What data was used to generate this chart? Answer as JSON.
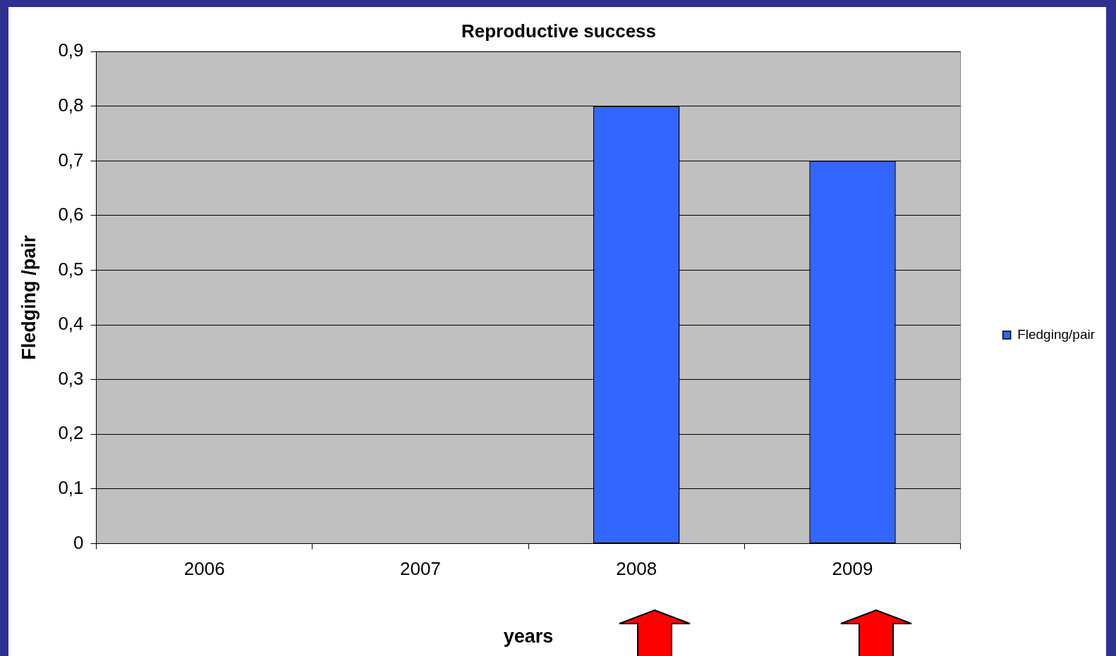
{
  "chart_data": {
    "type": "bar",
    "title": "Reproductive success",
    "xlabel": "years",
    "ylabel": "Fledging /pair",
    "categories": [
      "2006",
      "2007",
      "2008",
      "2009"
    ],
    "series": [
      {
        "name": "Fledging/pair",
        "color": "#3366ff",
        "values": [
          null,
          null,
          0.8,
          0.7
        ]
      }
    ],
    "ylim": [
      0,
      0.9
    ],
    "yticks": [
      0,
      {
        "value": 0.1,
        "label": "0,1"
      },
      {
        "value": 0.2,
        "label": "0,2"
      },
      {
        "value": 0.3,
        "label": "0,3"
      },
      {
        "value": 0.4,
        "label": "0,4"
      },
      {
        "value": 0.5,
        "label": "0,5"
      },
      {
        "value": 0.6,
        "label": "0,6"
      },
      {
        "value": 0.7,
        "label": "0,7"
      },
      {
        "value": 0.8,
        "label": "0,8"
      },
      {
        "value": 0.9,
        "label": "0,9"
      }
    ],
    "grid": "y",
    "legend": "right"
  }
}
